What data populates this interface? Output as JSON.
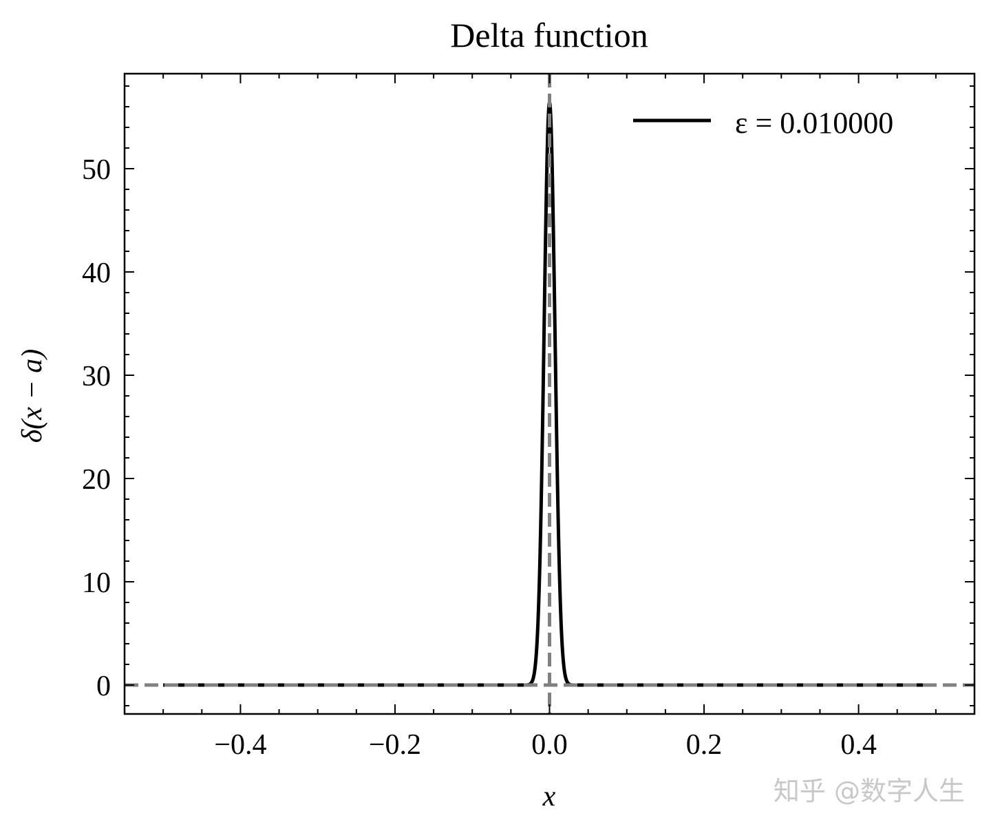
{
  "chart_data": {
    "type": "line",
    "title": "Delta function",
    "xlabel": "x",
    "ylabel": "δ(x − a)",
    "xlim": [
      -0.55,
      0.55
    ],
    "ylim": [
      -2.8,
      59.2
    ],
    "x_major_ticks": [
      -0.4,
      -0.2,
      0.0,
      0.2,
      0.4
    ],
    "x_tick_labels": [
      "−0.4",
      "−0.2",
      "0.0",
      "0.2",
      "0.4"
    ],
    "y_major_ticks": [
      0,
      10,
      20,
      30,
      40,
      50
    ],
    "y_tick_labels": [
      "0",
      "10",
      "20",
      "30",
      "40",
      "50"
    ],
    "legend_location": "upper right",
    "grid": false,
    "series": [
      {
        "name": "ε = 0.010000",
        "color": "#000000",
        "style": "solid",
        "kind": "gaussian",
        "center": 0.0,
        "epsilon": 0.01,
        "x_range": [
          -0.5,
          0.5
        ],
        "peak": 56.4
      }
    ],
    "reference_lines": [
      {
        "orientation": "horizontal",
        "value": 0,
        "color": "#808080",
        "style": "dashed"
      },
      {
        "orientation": "vertical",
        "value": 0,
        "color": "#808080",
        "style": "dashed"
      }
    ]
  },
  "watermark": {
    "text": "知乎 @数字人生",
    "color": "#c8c8c8"
  }
}
